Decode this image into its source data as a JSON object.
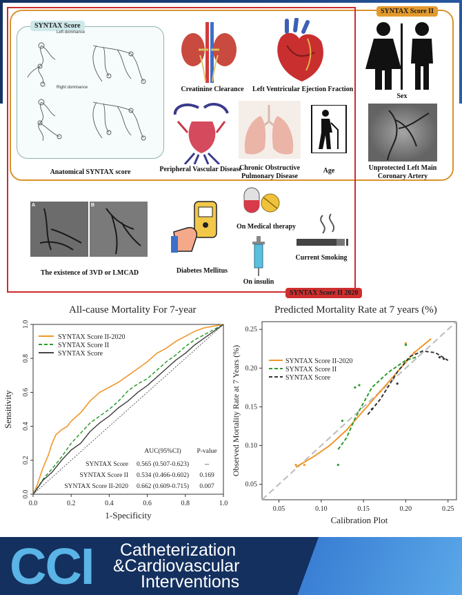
{
  "colors": {
    "orange": "#f0962a",
    "green": "#2a9a2a",
    "darkgray": "#444444",
    "frame_orange": "#d9922b",
    "frame_red": "#cc2b2b",
    "brand_blue": "#5ab4e6",
    "navy": "#14305f"
  },
  "graphical_abstract": {
    "tag_syntax_score": "SYNTAX Score",
    "tag_syntax_score_ii": "SYNTAX Score II",
    "tag_syntax_score_ii_2020": "SYNTAX Score II 2020",
    "left_dominance": "Left dominance",
    "right_dominance": "Right dominance",
    "items": {
      "anatomical": "Anatomical SYNTAX score",
      "creatinine": "Creatinine Clearance",
      "lvef": "Left Ventricular Ejection Fraction",
      "sex": "Sex",
      "pvd": "Peripheral Vascular Disease",
      "copd_line1": "Chronic Obstructive",
      "copd_line2": "Pulmonary Disease",
      "age": "Age",
      "ulm_line1": "Unprotected Left Main",
      "ulm_line2": "Coronary Artery",
      "three_vd": "The existence of 3VD or LMCAD",
      "diabetes": "Diabetes Mellitus",
      "medical_therapy": "On Medical therapy",
      "insulin": "On insulin",
      "smoking": "Current Smoking",
      "angio_a": "A",
      "angio_b": "B"
    }
  },
  "chart_data": [
    {
      "type": "line",
      "title": "All-cause Mortality For 7-year",
      "xlabel": "1-Specificity",
      "ylabel": "Sensitivity",
      "xlim": [
        0,
        1
      ],
      "ylim": [
        0,
        1
      ],
      "xticks": [
        "0.0",
        "0.2",
        "0.4",
        "0.6",
        "0.8",
        "1.0"
      ],
      "yticks": [
        "0.0",
        "0.2",
        "0.4",
        "0.6",
        "0.8",
        "1.0"
      ],
      "legend_position": "top-left",
      "series": [
        {
          "name": "SYNTAX Score II-2020",
          "color": "#f0962a",
          "dash": "solid",
          "points": [
            [
              0,
              0
            ],
            [
              0.02,
              0.05
            ],
            [
              0.05,
              0.15
            ],
            [
              0.08,
              0.23
            ],
            [
              0.1,
              0.3
            ],
            [
              0.12,
              0.35
            ],
            [
              0.15,
              0.38
            ],
            [
              0.18,
              0.4
            ],
            [
              0.2,
              0.43
            ],
            [
              0.25,
              0.48
            ],
            [
              0.3,
              0.55
            ],
            [
              0.35,
              0.6
            ],
            [
              0.4,
              0.63
            ],
            [
              0.45,
              0.66
            ],
            [
              0.5,
              0.7
            ],
            [
              0.55,
              0.74
            ],
            [
              0.6,
              0.78
            ],
            [
              0.65,
              0.83
            ],
            [
              0.7,
              0.86
            ],
            [
              0.75,
              0.9
            ],
            [
              0.8,
              0.93
            ],
            [
              0.85,
              0.96
            ],
            [
              0.9,
              0.98
            ],
            [
              0.95,
              0.99
            ],
            [
              1,
              1
            ]
          ]
        },
        {
          "name": "SYNTAX Score II",
          "color": "#2a9a2a",
          "dash": "dashed",
          "points": [
            [
              0,
              0
            ],
            [
              0.03,
              0.05
            ],
            [
              0.06,
              0.1
            ],
            [
              0.1,
              0.15
            ],
            [
              0.15,
              0.22
            ],
            [
              0.2,
              0.3
            ],
            [
              0.25,
              0.36
            ],
            [
              0.3,
              0.42
            ],
            [
              0.35,
              0.46
            ],
            [
              0.4,
              0.5
            ],
            [
              0.45,
              0.55
            ],
            [
              0.5,
              0.61
            ],
            [
              0.55,
              0.65
            ],
            [
              0.6,
              0.68
            ],
            [
              0.65,
              0.73
            ],
            [
              0.7,
              0.78
            ],
            [
              0.75,
              0.82
            ],
            [
              0.8,
              0.87
            ],
            [
              0.85,
              0.91
            ],
            [
              0.9,
              0.94
            ],
            [
              0.95,
              0.97
            ],
            [
              1,
              1
            ]
          ]
        },
        {
          "name": "SYNTAX Score",
          "color": "#444444",
          "dash": "solid",
          "points": [
            [
              0,
              0
            ],
            [
              0.02,
              0.03
            ],
            [
              0.05,
              0.08
            ],
            [
              0.1,
              0.13
            ],
            [
              0.15,
              0.2
            ],
            [
              0.2,
              0.26
            ],
            [
              0.25,
              0.3
            ],
            [
              0.3,
              0.37
            ],
            [
              0.35,
              0.42
            ],
            [
              0.4,
              0.46
            ],
            [
              0.45,
              0.51
            ],
            [
              0.5,
              0.55
            ],
            [
              0.55,
              0.6
            ],
            [
              0.6,
              0.64
            ],
            [
              0.65,
              0.69
            ],
            [
              0.7,
              0.74
            ],
            [
              0.75,
              0.79
            ],
            [
              0.8,
              0.83
            ],
            [
              0.85,
              0.88
            ],
            [
              0.9,
              0.92
            ],
            [
              0.95,
              0.96
            ],
            [
              1,
              1
            ]
          ]
        }
      ],
      "auc_table": {
        "headers": [
          "",
          "AUC(95%CI)",
          "P-value"
        ],
        "rows": [
          [
            "SYNTAX Score",
            "0.565 (0.507-0.623)",
            "--"
          ],
          [
            "SYNTAX Score II",
            "0.534 (0.466-0.602)",
            "0.169"
          ],
          [
            "SYNTAX Score II-2020",
            "0.662 (0.609-0.715)",
            "0.007"
          ]
        ]
      }
    },
    {
      "type": "line",
      "title": "Predicted Mortality Rate at 7 years (%)",
      "xlabel": "Calibration Plot",
      "ylabel": "Observed Mortality Rate at 7 Years (%)",
      "xlim": [
        0.03,
        0.26
      ],
      "ylim": [
        0.03,
        0.26
      ],
      "xticks": [
        "0.05",
        "0.10",
        "0.15",
        "0.20",
        "0.25"
      ],
      "yticks": [
        "0.05",
        "0.10",
        "0.15",
        "0.20",
        "0.25"
      ],
      "legend_position": "top-left",
      "reference_line": "y = x",
      "series": [
        {
          "name": "SYNTAX Score II-2020",
          "color": "#f0962a",
          "dash": "solid",
          "points": [
            [
              0.07,
              0.072
            ],
            [
              0.09,
              0.085
            ],
            [
              0.11,
              0.1
            ],
            [
              0.13,
              0.12
            ],
            [
              0.15,
              0.145
            ],
            [
              0.17,
              0.17
            ],
            [
              0.19,
              0.195
            ],
            [
              0.21,
              0.22
            ],
            [
              0.23,
              0.238
            ]
          ],
          "scatter": [
            [
              0.07,
              0.075
            ],
            [
              0.08,
              0.075
            ],
            [
              0.17,
              0.17
            ],
            [
              0.2,
              0.232
            ],
            [
              0.21,
              0.22
            ]
          ]
        },
        {
          "name": "SYNTAX Score II",
          "color": "#2a9a2a",
          "dash": "dashed",
          "points": [
            [
              0.12,
              0.095
            ],
            [
              0.13,
              0.11
            ],
            [
              0.14,
              0.135
            ],
            [
              0.15,
              0.155
            ],
            [
              0.16,
              0.175
            ],
            [
              0.18,
              0.195
            ],
            [
              0.2,
              0.21
            ],
            [
              0.215,
              0.215
            ]
          ],
          "scatter": [
            [
              0.12,
              0.075
            ],
            [
              0.125,
              0.132
            ],
            [
              0.14,
              0.175
            ],
            [
              0.145,
              0.178
            ],
            [
              0.2,
              0.23
            ]
          ]
        },
        {
          "name": "SYNTAX Score",
          "color": "#333333",
          "dash": "dashed",
          "points": [
            [
              0.155,
              0.14
            ],
            [
              0.17,
              0.16
            ],
            [
              0.19,
              0.195
            ],
            [
              0.205,
              0.215
            ],
            [
              0.22,
              0.222
            ],
            [
              0.235,
              0.22
            ],
            [
              0.25,
              0.21
            ]
          ],
          "scatter": [
            [
              0.16,
              0.147
            ],
            [
              0.19,
              0.18
            ],
            [
              0.24,
              0.214
            ],
            [
              0.245,
              0.212
            ]
          ]
        }
      ]
    }
  ],
  "footer": {
    "logo": "CCI",
    "line1": "Catheterization",
    "line2": "&Cardiovascular",
    "line3": "Interventions"
  }
}
